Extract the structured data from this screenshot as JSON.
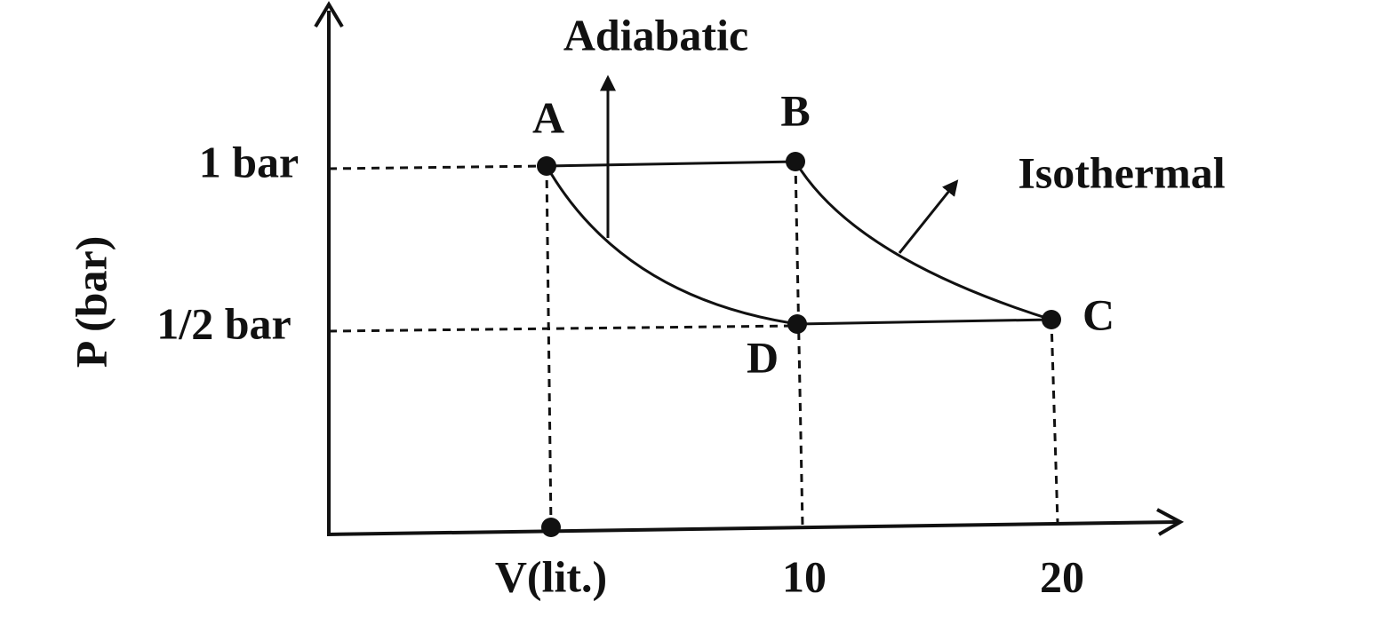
{
  "diagram": {
    "axes": {
      "y_label": "P (bar)",
      "x_label": "V(lit.)",
      "y_ticks": [
        "1 bar",
        "1/2 bar"
      ],
      "x_ticks": [
        "10",
        "20"
      ]
    },
    "points": [
      {
        "label": "A"
      },
      {
        "label": "B"
      },
      {
        "label": "C"
      },
      {
        "label": "D"
      }
    ],
    "curves": [
      {
        "label": "Adiabatic"
      },
      {
        "label": "Isothermal"
      }
    ]
  }
}
